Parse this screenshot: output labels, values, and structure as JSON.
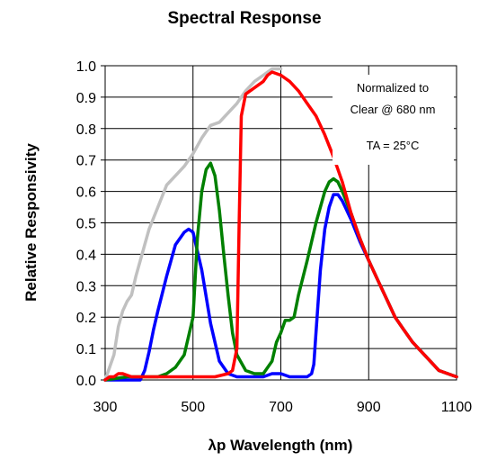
{
  "chart_data": {
    "type": "line",
    "title": "Spectral Response",
    "xlabel": "λp Wavelength (nm)",
    "ylabel": "Relative Responsivity",
    "xlim": [
      300,
      1100
    ],
    "ylim": [
      0,
      1.0
    ],
    "x_ticks": [
      "300",
      "500",
      "700",
      "900",
      "1100"
    ],
    "y_ticks": [
      "0.0",
      "0.1",
      "0.2",
      "0.3",
      "0.4",
      "0.5",
      "0.6",
      "0.7",
      "0.8",
      "0.9",
      "1.0"
    ],
    "grid": true,
    "annotations": [
      "Normalized to",
      "Clear @ 680 nm",
      "TA = 25°C"
    ],
    "series": [
      {
        "color": "#c0c0c0",
        "x": [
          300,
          320,
          330,
          340,
          350,
          360,
          370,
          380,
          390,
          400,
          420,
          440,
          460,
          480,
          500,
          520,
          540,
          560,
          580,
          600,
          620,
          640,
          660,
          680,
          700
        ],
        "y": [
          0.0,
          0.08,
          0.17,
          0.22,
          0.25,
          0.27,
          0.33,
          0.38,
          0.43,
          0.48,
          0.55,
          0.62,
          0.65,
          0.68,
          0.72,
          0.77,
          0.81,
          0.82,
          0.85,
          0.88,
          0.92,
          0.95,
          0.97,
          0.99,
          0.99
        ]
      },
      {
        "color": "#0000ff",
        "x": [
          300,
          380,
          390,
          400,
          410,
          420,
          440,
          460,
          480,
          490,
          500,
          520,
          540,
          560,
          580,
          600,
          620,
          640,
          660,
          680,
          700,
          720,
          740,
          760,
          770,
          775,
          780,
          790,
          800,
          810,
          820,
          830,
          840,
          860,
          880,
          900,
          920,
          940,
          960,
          980,
          1000,
          1020,
          1040,
          1060,
          1080,
          1100
        ],
        "y": [
          0.0,
          0.0,
          0.03,
          0.09,
          0.16,
          0.22,
          0.33,
          0.43,
          0.47,
          0.48,
          0.47,
          0.35,
          0.18,
          0.06,
          0.02,
          0.01,
          0.01,
          0.01,
          0.01,
          0.02,
          0.02,
          0.01,
          0.01,
          0.01,
          0.02,
          0.05,
          0.15,
          0.35,
          0.48,
          0.55,
          0.59,
          0.59,
          0.57,
          0.51,
          0.44,
          0.38,
          0.32,
          0.26,
          0.2,
          0.16,
          0.12,
          0.09,
          0.06,
          0.03,
          0.02,
          0.01
        ]
      },
      {
        "color": "#008000",
        "x": [
          300,
          350,
          400,
          420,
          440,
          460,
          480,
          500,
          510,
          520,
          530,
          540,
          550,
          560,
          570,
          580,
          590,
          600,
          620,
          640,
          660,
          680,
          690,
          700,
          710,
          720,
          730,
          740,
          760,
          780,
          800,
          810,
          820,
          830,
          840,
          860,
          880,
          900,
          920,
          940,
          960,
          980,
          1000,
          1020,
          1040,
          1060,
          1080,
          1100
        ],
        "y": [
          0.0,
          0.01,
          0.01,
          0.01,
          0.02,
          0.04,
          0.08,
          0.2,
          0.45,
          0.6,
          0.67,
          0.69,
          0.65,
          0.54,
          0.4,
          0.27,
          0.15,
          0.08,
          0.03,
          0.02,
          0.02,
          0.06,
          0.12,
          0.15,
          0.19,
          0.19,
          0.2,
          0.27,
          0.38,
          0.5,
          0.6,
          0.63,
          0.64,
          0.63,
          0.6,
          0.53,
          0.45,
          0.38,
          0.32,
          0.26,
          0.2,
          0.16,
          0.12,
          0.09,
          0.06,
          0.03,
          0.02,
          0.01
        ]
      },
      {
        "color": "#ff0000",
        "x": [
          300,
          310,
          320,
          330,
          340,
          360,
          400,
          450,
          500,
          550,
          580,
          590,
          600,
          605,
          610,
          620,
          640,
          660,
          670,
          680,
          700,
          720,
          740,
          760,
          780,
          800,
          820,
          840,
          860,
          880,
          900,
          920,
          940,
          960,
          980,
          1000,
          1020,
          1040,
          1060,
          1080,
          1100
        ],
        "y": [
          0.0,
          0.01,
          0.01,
          0.02,
          0.02,
          0.01,
          0.01,
          0.01,
          0.01,
          0.01,
          0.02,
          0.03,
          0.1,
          0.5,
          0.84,
          0.91,
          0.93,
          0.95,
          0.97,
          0.98,
          0.97,
          0.95,
          0.92,
          0.88,
          0.84,
          0.78,
          0.71,
          0.63,
          0.53,
          0.45,
          0.38,
          0.32,
          0.26,
          0.2,
          0.16,
          0.12,
          0.09,
          0.06,
          0.03,
          0.02,
          0.01
        ]
      }
    ]
  }
}
